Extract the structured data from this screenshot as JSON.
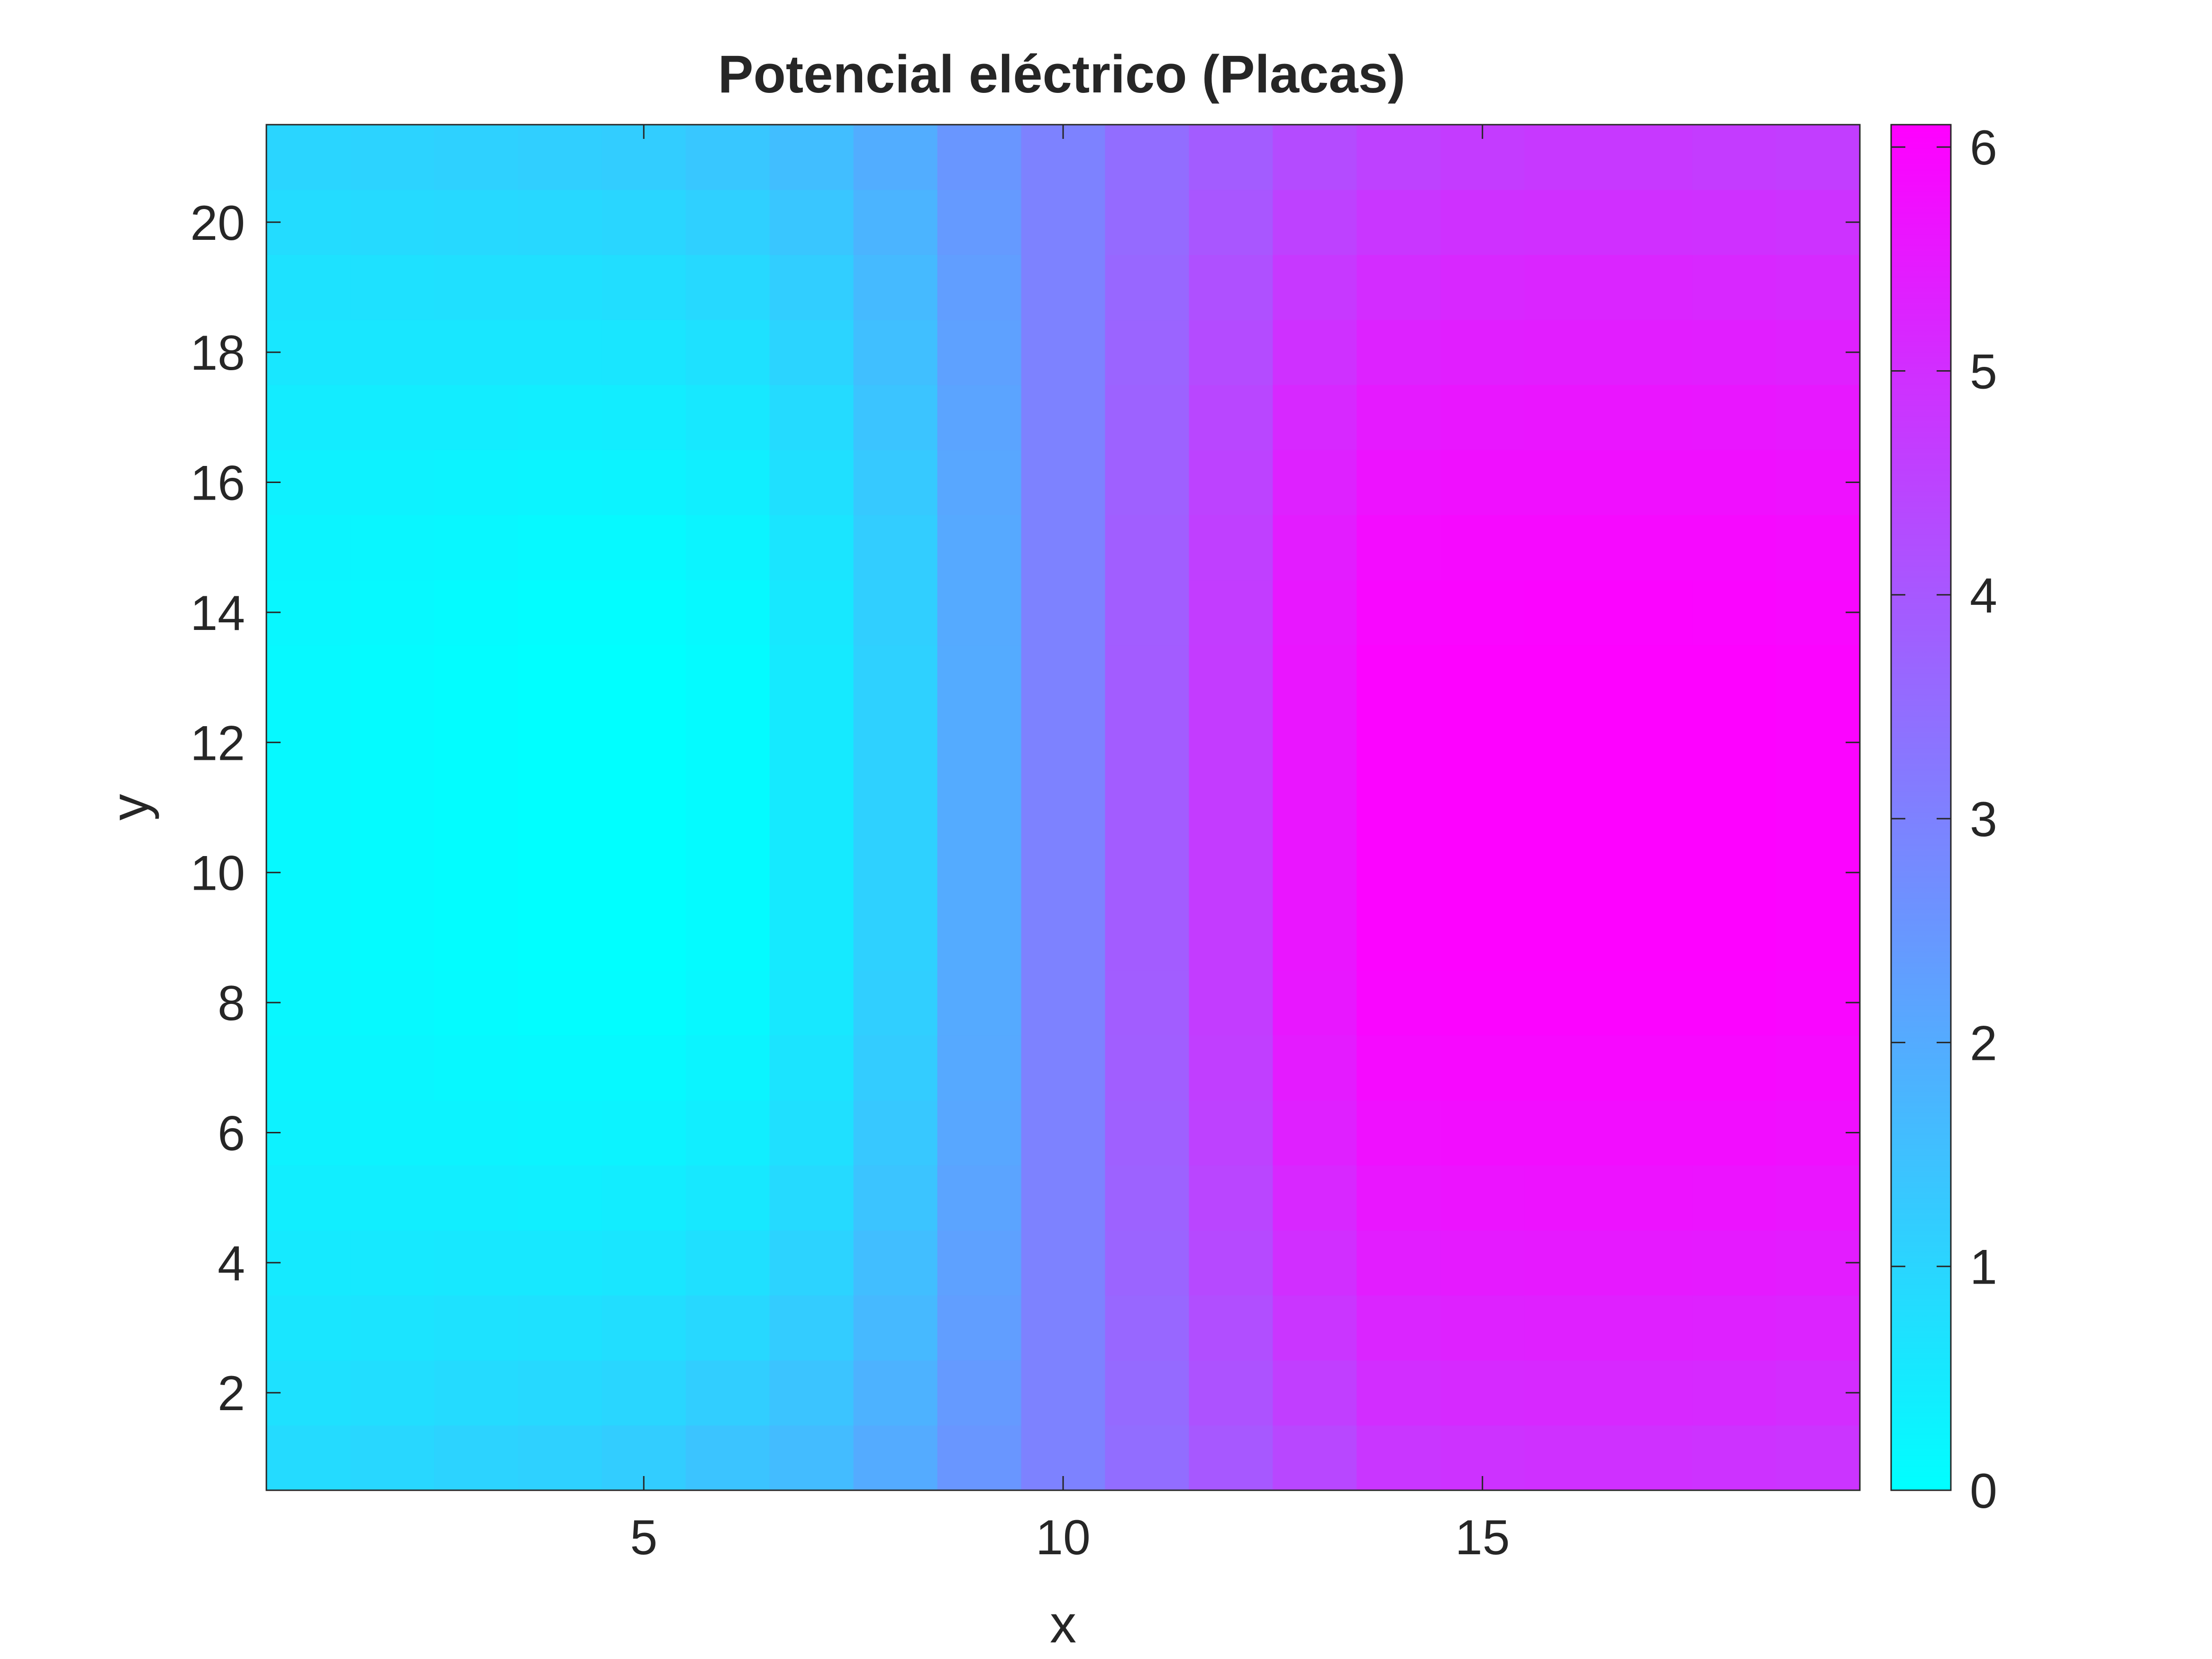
{
  "chart_data": {
    "type": "heatmap",
    "title": "Potencial eléctrico (Placas)",
    "xlabel": "x",
    "ylabel": "y",
    "x_range": [
      0.5,
      19.5
    ],
    "y_range": [
      0.5,
      21.5
    ],
    "x_ticks": [
      5,
      10,
      15
    ],
    "y_ticks": [
      2,
      4,
      6,
      8,
      10,
      12,
      14,
      16,
      18,
      20
    ],
    "colorbar": {
      "range": [
        0,
        6.1
      ],
      "ticks": [
        0,
        1,
        2,
        3,
        4,
        5,
        6
      ],
      "colormap": "cool",
      "low_color": "#00ffff",
      "high_color": "#ff00ff"
    },
    "grid": false,
    "columns": 19,
    "rows": 21,
    "column_profile_bottom": [
      0.85,
      0.95,
      1.05,
      1.1,
      1.2,
      1.4,
      1.6,
      2.0,
      2.5,
      3.0,
      3.5,
      4.0,
      4.4,
      4.8,
      4.9,
      4.95,
      4.95,
      4.9,
      4.85
    ],
    "column_profile_middle": [
      0.15,
      0.1,
      0.05,
      0.0,
      0.0,
      0.1,
      0.5,
      1.1,
      2.0,
      3.0,
      3.9,
      4.7,
      5.6,
      6.0,
      6.05,
      6.05,
      6.05,
      6.05,
      6.0
    ],
    "column_profile_top": [
      1.0,
      1.05,
      1.1,
      1.15,
      1.2,
      1.35,
      1.55,
      1.95,
      2.5,
      3.0,
      3.5,
      3.9,
      4.3,
      4.55,
      4.7,
      4.75,
      4.75,
      4.7,
      4.65
    ]
  }
}
